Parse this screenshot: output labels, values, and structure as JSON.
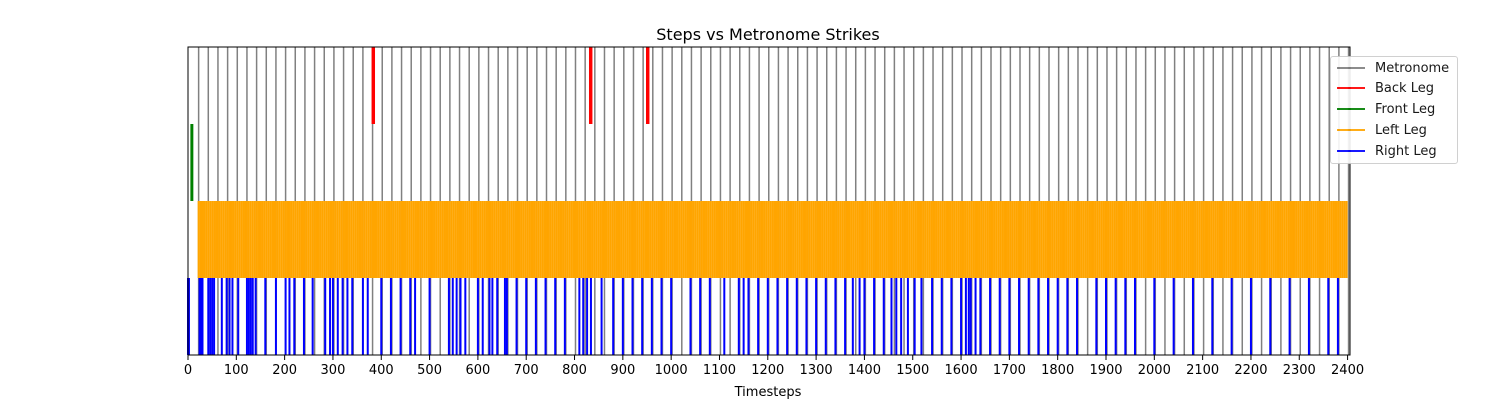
{
  "chart_data": {
    "type": "event-plot",
    "title": "Steps vs Metronome Strikes",
    "xlabel": "Timesteps",
    "ylabel": "",
    "xlim": [
      0,
      2405
    ],
    "x_ticks": [
      0,
      100,
      200,
      300,
      400,
      500,
      600,
      700,
      800,
      900,
      1000,
      1100,
      1200,
      1300,
      1400,
      1500,
      1600,
      1700,
      1800,
      1900,
      2000,
      2100,
      2200,
      2300,
      2400
    ],
    "x_tick_labels": [
      "0",
      "100",
      "200",
      "300",
      "400",
      "500",
      "600",
      "700",
      "800",
      "900",
      "1000",
      "1100",
      "1200",
      "1300",
      "1400",
      "1500",
      "1600",
      "1700",
      "1800",
      "1900",
      "2000",
      "2100",
      "2200",
      "2300",
      "2400"
    ],
    "legend_position": "upper-right",
    "grid": false,
    "series": [
      {
        "name": "Metronome",
        "color": "#808080",
        "lane": "full",
        "events": [
          22,
          42,
          62,
          82,
          102,
          122,
          142,
          162,
          182,
          202,
          222,
          242,
          262,
          282,
          302,
          322,
          342,
          362,
          382,
          402,
          422,
          442,
          462,
          482,
          502,
          522,
          542,
          562,
          582,
          602,
          622,
          642,
          662,
          682,
          702,
          722,
          742,
          762,
          782,
          802,
          822,
          842,
          862,
          882,
          902,
          922,
          942,
          962,
          982,
          1002,
          1022,
          1042,
          1062,
          1082,
          1102,
          1122,
          1142,
          1162,
          1182,
          1202,
          1222,
          1242,
          1262,
          1282,
          1302,
          1322,
          1342,
          1362,
          1382,
          1402,
          1422,
          1442,
          1462,
          1482,
          1502,
          1522,
          1542,
          1562,
          1582,
          1602,
          1622,
          1642,
          1662,
          1682,
          1702,
          1722,
          1742,
          1762,
          1782,
          1802,
          1822,
          1842,
          1862,
          1882,
          1902,
          1922,
          1942,
          1962,
          1982,
          2002,
          2022,
          2042,
          2062,
          2082,
          2102,
          2122,
          2142,
          2162,
          2182,
          2202,
          2222,
          2242,
          2262,
          2282,
          2302,
          2322,
          2342,
          2362,
          2382,
          2402
        ]
      },
      {
        "name": "Back Leg",
        "color": "#ff0000",
        "lane": 3,
        "events": [
          382,
          383,
          384,
          385,
          832,
          833,
          834,
          835,
          950,
          951,
          952,
          953
        ]
      },
      {
        "name": "Front Leg",
        "color": "#008000",
        "lane": 2,
        "events": [
          7,
          8,
          9
        ]
      },
      {
        "name": "Left Leg",
        "color": "#ffa500",
        "lane": 1,
        "events": [
          22,
          26,
          30,
          34,
          38,
          42,
          46,
          50,
          54,
          58,
          62,
          66,
          70,
          74,
          78,
          82,
          86,
          90,
          94,
          98,
          102,
          106,
          110,
          114,
          118,
          122,
          126,
          130,
          134,
          138,
          142,
          146,
          150,
          154,
          158,
          162,
          166,
          170,
          174,
          178,
          182,
          186,
          190,
          194,
          198,
          202,
          206,
          210,
          214,
          218,
          222,
          226,
          230,
          234,
          238,
          242,
          246,
          250,
          254,
          258,
          262,
          266,
          270,
          274,
          278,
          282,
          286,
          290,
          294,
          298,
          302,
          306,
          310,
          314,
          318,
          322,
          326,
          330,
          334,
          338,
          342,
          346,
          350,
          354,
          358,
          362,
          366,
          370,
          374,
          378,
          382,
          386,
          390,
          394,
          398,
          402,
          406,
          410,
          414,
          418,
          422,
          426,
          430,
          434,
          438,
          442,
          446,
          450,
          454,
          458,
          462,
          466,
          470,
          474,
          478,
          482,
          486,
          490,
          494,
          498,
          502,
          506,
          510,
          514,
          518,
          522,
          526,
          530,
          534,
          538,
          542,
          546,
          550,
          554,
          558,
          562,
          566,
          570,
          574,
          578,
          582,
          586,
          590,
          594,
          598,
          602,
          606,
          610,
          614,
          618,
          622,
          626,
          630,
          634,
          638,
          642,
          646,
          650,
          654,
          658,
          662,
          666,
          670,
          674,
          678,
          682,
          686,
          690,
          694,
          698,
          702,
          706,
          710,
          714,
          718,
          722,
          726,
          730,
          734,
          738,
          742,
          746,
          750,
          754,
          758,
          762,
          766,
          770,
          774,
          778,
          782,
          786,
          790,
          794,
          798,
          802,
          806,
          810,
          814,
          818,
          822,
          826,
          830,
          834,
          838,
          842,
          846,
          850,
          854,
          858,
          862,
          866,
          870,
          874,
          878,
          882,
          886,
          890,
          894,
          898,
          902,
          906,
          910,
          914,
          918,
          922,
          926,
          930,
          934,
          938,
          942,
          946,
          950,
          954,
          958,
          962,
          966,
          970,
          974,
          978,
          982,
          986,
          990,
          994,
          998,
          1002,
          1006,
          1010,
          1014,
          1018,
          1022,
          1026,
          1030,
          1034,
          1038,
          1042,
          1046,
          1050,
          1054,
          1058,
          1062,
          1066,
          1070,
          1074,
          1078,
          1082,
          1086,
          1090,
          1094,
          1098,
          1102,
          1106,
          1110,
          1114,
          1118,
          1122,
          1126,
          1130,
          1134,
          1138,
          1142,
          1146,
          1150,
          1154,
          1158,
          1162,
          1166,
          1170,
          1174,
          1178,
          1182,
          1186,
          1190,
          1194,
          1198,
          1202,
          1206,
          1210,
          1214,
          1218,
          1222,
          1226,
          1230,
          1234,
          1238,
          1242,
          1246,
          1250,
          1254,
          1258,
          1262,
          1266,
          1270,
          1274,
          1278,
          1282,
          1286,
          1290,
          1294,
          1298,
          1302,
          1306,
          1310,
          1314,
          1318,
          1322,
          1326,
          1330,
          1334,
          1338,
          1342,
          1346,
          1350,
          1354,
          1358,
          1362,
          1366,
          1370,
          1374,
          1378,
          1382,
          1386,
          1390,
          1394,
          1398,
          1402,
          1406,
          1410,
          1414,
          1418,
          1422,
          1426,
          1430,
          1434,
          1438,
          1442,
          1446,
          1450,
          1454,
          1458,
          1462,
          1466,
          1470,
          1474,
          1478,
          1482,
          1486,
          1490,
          1494,
          1498,
          1502,
          1506,
          1510,
          1514,
          1518,
          1522,
          1526,
          1530,
          1534,
          1538,
          1542,
          1546,
          1550,
          1554,
          1558,
          1562,
          1566,
          1570,
          1574,
          1578,
          1582,
          1586,
          1590,
          1594,
          1598,
          1602,
          1606,
          1610,
          1614,
          1618,
          1622,
          1626,
          1630,
          1634,
          1638,
          1642,
          1646,
          1650,
          1654,
          1658,
          1662,
          1666,
          1670,
          1674,
          1678,
          1682,
          1686,
          1690,
          1694,
          1698,
          1702,
          1706,
          1710,
          1714,
          1718,
          1722,
          1726,
          1730,
          1734,
          1738,
          1742,
          1746,
          1750,
          1754,
          1758,
          1762,
          1766,
          1770,
          1774,
          1778,
          1782,
          1786,
          1790,
          1794,
          1798,
          1802,
          1806,
          1810,
          1814,
          1818,
          1822,
          1826,
          1830,
          1834,
          1838,
          1842,
          1846,
          1850,
          1854,
          1858,
          1862,
          1866,
          1870,
          1874,
          1878,
          1882,
          1886,
          1890,
          1894,
          1898,
          1902,
          1906,
          1910,
          1914,
          1918,
          1922,
          1926,
          1930,
          1934,
          1938,
          1942,
          1946,
          1950,
          1954,
          1958,
          1962,
          1966,
          1970,
          1974,
          1978,
          1982,
          1986,
          1990,
          1994,
          1998,
          2002,
          2006,
          2010,
          2014,
          2018,
          2022,
          2026,
          2030,
          2034,
          2038,
          2042,
          2046,
          2050,
          2054,
          2058,
          2062,
          2066,
          2070,
          2074,
          2078,
          2082,
          2086,
          2090,
          2094,
          2098,
          2102,
          2106,
          2110,
          2114,
          2118,
          2122,
          2126,
          2130,
          2134,
          2138,
          2142,
          2146,
          2150,
          2154,
          2158,
          2162,
          2166,
          2170,
          2174,
          2178,
          2182,
          2186,
          2190,
          2194,
          2198,
          2202,
          2206,
          2210,
          2214,
          2218,
          2222,
          2226,
          2230,
          2234,
          2238,
          2242,
          2246,
          2250,
          2254,
          2258,
          2262,
          2266,
          2270,
          2274,
          2278,
          2282,
          2286,
          2290,
          2294,
          2298,
          2302,
          2306,
          2310,
          2314,
          2318,
          2322,
          2326,
          2330,
          2334,
          2338,
          2342,
          2346,
          2350,
          2354,
          2358,
          2362,
          2366,
          2370,
          2374,
          2378,
          2382,
          2386,
          2390,
          2394,
          2398
        ]
      },
      {
        "name": "Right Leg",
        "color": "#0000ff",
        "lane": 0,
        "events": [
          0,
          2,
          24,
          27,
          30,
          42,
          46,
          50,
          54,
          70,
          80,
          86,
          92,
          104,
          122,
          126,
          130,
          134,
          140,
          160,
          182,
          202,
          210,
          220,
          240,
          258,
          284,
          294,
          300,
          310,
          320,
          330,
          340,
          362,
          372,
          400,
          420,
          440,
          460,
          470,
          500,
          540,
          548,
          556,
          564,
          574,
          600,
          610,
          624,
          630,
          640,
          656,
          660,
          680,
          700,
          720,
          740,
          760,
          780,
          810,
          818,
          826,
          834,
          856,
          880,
          900,
          920,
          940,
          960,
          980,
          1000,
          1040,
          1060,
          1080,
          1110,
          1140,
          1150,
          1160,
          1180,
          1200,
          1220,
          1240,
          1260,
          1280,
          1300,
          1320,
          1340,
          1360,
          1376,
          1390,
          1400,
          1420,
          1440,
          1456,
          1466,
          1476,
          1490,
          1504,
          1518,
          1540,
          1560,
          1580,
          1600,
          1610,
          1616,
          1620,
          1630,
          1640,
          1660,
          1680,
          1700,
          1720,
          1740,
          1760,
          1780,
          1800,
          1820,
          1840,
          1880,
          1900,
          1920,
          1940,
          1960,
          2000,
          2040,
          2080,
          2120,
          2160,
          2200,
          2240,
          2280,
          2320,
          2360,
          2380
        ]
      }
    ]
  }
}
